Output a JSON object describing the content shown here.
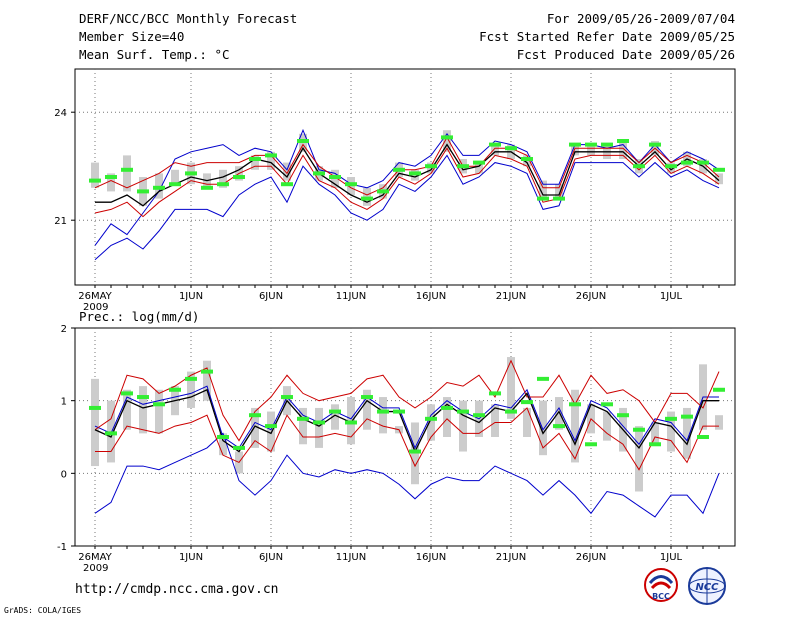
{
  "header": {
    "title": "DERF/NCC/BCC Monthly Forecast",
    "member_size": "Member Size=40",
    "variable": "Mean Surf. Temp.: °C",
    "period": "For 2009/05/26-2009/07/04",
    "started": "Fcst Started Refer Date 2009/05/25",
    "produced": "Fcst Produced Date 2009/05/26"
  },
  "footer": {
    "url": "http://cmdp.ncc.cma.gov.cn",
    "grads": "GrADS: COLA/IGES",
    "logo_bcc": "BCC",
    "logo_ncc": "NCC"
  },
  "colors": {
    "max_min": "#0000cc",
    "spread": "#cc0000",
    "mean": "#000000",
    "obs": "#33ee33",
    "box": "#cccccc"
  },
  "chart_data": [
    {
      "type": "line",
      "title": "Mean Surf. Temp.: °C",
      "ylim": [
        19.2,
        25.2
      ],
      "yticks": [
        21,
        24
      ],
      "ytick_labels": [
        "21",
        "24"
      ],
      "x_labels": [
        {
          "day": 0,
          "label": "26MAY"
        },
        {
          "day": 6,
          "label": "1JUN"
        },
        {
          "day": 11,
          "label": "6JUN"
        },
        {
          "day": 16,
          "label": "11JUN"
        },
        {
          "day": 21,
          "label": "16JUN"
        },
        {
          "day": 26,
          "label": "21JUN"
        },
        {
          "day": 31,
          "label": "26JUN"
        },
        {
          "day": 36,
          "label": "1JUL"
        }
      ],
      "year_label": "2009",
      "series": [
        {
          "name": "max",
          "values": [
            20.3,
            20.9,
            20.6,
            21.2,
            21.8,
            22.7,
            22.9,
            23.0,
            23.1,
            22.8,
            23.0,
            22.9,
            22.4,
            23.5,
            22.4,
            22.3,
            22.0,
            21.9,
            22.1,
            22.6,
            22.5,
            22.8,
            23.4,
            22.8,
            22.8,
            23.2,
            23.1,
            22.9,
            22.0,
            22.0,
            23.1,
            23.1,
            23.0,
            23.1,
            22.6,
            23.1,
            22.6,
            22.9,
            22.7,
            22.4
          ]
        },
        {
          "name": "upper",
          "values": [
            21.9,
            22.1,
            21.9,
            22.1,
            22.3,
            22.6,
            22.5,
            22.6,
            22.6,
            22.6,
            22.8,
            22.8,
            22.3,
            23.1,
            22.5,
            22.2,
            21.9,
            21.7,
            21.9,
            22.4,
            22.4,
            22.5,
            23.3,
            22.5,
            22.5,
            23.0,
            23.0,
            22.8,
            21.9,
            21.9,
            23.0,
            23.0,
            23.0,
            23.0,
            22.6,
            23.0,
            22.6,
            22.8,
            22.6,
            22.2
          ]
        },
        {
          "name": "mean",
          "values": [
            21.5,
            21.5,
            21.7,
            21.4,
            21.8,
            22.0,
            22.2,
            22.1,
            22.2,
            22.4,
            22.7,
            22.6,
            22.2,
            23.0,
            22.3,
            22.0,
            21.7,
            21.5,
            21.7,
            22.3,
            22.2,
            22.4,
            23.1,
            22.4,
            22.5,
            22.9,
            22.9,
            22.6,
            21.7,
            21.7,
            22.9,
            22.9,
            22.9,
            22.9,
            22.5,
            22.9,
            22.4,
            22.7,
            22.5,
            22.1
          ]
        },
        {
          "name": "lower",
          "values": [
            21.2,
            21.3,
            21.5,
            21.1,
            21.5,
            21.8,
            22.1,
            22.0,
            22.0,
            22.3,
            22.5,
            22.5,
            22.0,
            22.8,
            22.1,
            21.9,
            21.5,
            21.3,
            21.6,
            22.2,
            22.0,
            22.3,
            23.0,
            22.2,
            22.3,
            22.8,
            22.7,
            22.5,
            21.5,
            21.6,
            22.7,
            22.8,
            22.8,
            22.8,
            22.4,
            22.8,
            22.3,
            22.5,
            22.3,
            22.0
          ]
        },
        {
          "name": "min",
          "values": [
            19.9,
            20.3,
            20.5,
            20.2,
            20.7,
            21.3,
            21.3,
            21.3,
            21.1,
            21.7,
            22.0,
            22.2,
            21.5,
            22.5,
            22.0,
            21.7,
            21.2,
            21.0,
            21.3,
            22.0,
            21.8,
            22.2,
            22.8,
            22.0,
            22.2,
            22.6,
            22.5,
            22.3,
            21.3,
            21.4,
            22.6,
            22.6,
            22.6,
            22.6,
            22.2,
            22.6,
            22.2,
            22.4,
            22.1,
            21.9
          ]
        },
        {
          "name": "box_high",
          "values": [
            22.6,
            22.3,
            22.8,
            22.2,
            22.3,
            22.4,
            22.6,
            22.3,
            22.4,
            22.5,
            22.8,
            22.9,
            22.6,
            23.4,
            22.5,
            22.4,
            22.2,
            21.9,
            22.0,
            22.6,
            22.4,
            22.6,
            23.5,
            22.7,
            22.6,
            23.1,
            23.1,
            22.8,
            22.1,
            22.0,
            23.1,
            23.1,
            23.1,
            23.2,
            22.7,
            23.2,
            22.6,
            22.9,
            22.7,
            22.3
          ]
        },
        {
          "name": "box_low",
          "values": [
            21.9,
            21.8,
            21.8,
            21.4,
            21.6,
            22.0,
            22.0,
            21.9,
            21.9,
            22.1,
            22.4,
            22.4,
            22.1,
            22.9,
            22.1,
            21.9,
            21.7,
            21.4,
            21.6,
            22.2,
            22.1,
            22.3,
            22.9,
            22.3,
            22.3,
            22.8,
            22.7,
            22.5,
            21.6,
            21.6,
            22.8,
            22.8,
            22.7,
            22.7,
            22.3,
            22.8,
            22.3,
            22.5,
            22.3,
            22.0
          ]
        },
        {
          "name": "obs",
          "values": [
            22.1,
            22.2,
            22.4,
            21.8,
            21.9,
            22.0,
            22.3,
            21.9,
            22.0,
            22.2,
            22.7,
            22.8,
            22.0,
            23.2,
            22.3,
            22.2,
            22.0,
            21.6,
            21.8,
            22.4,
            22.3,
            22.5,
            23.3,
            22.5,
            22.6,
            23.1,
            23.0,
            22.7,
            21.6,
            21.6,
            23.1,
            23.1,
            23.1,
            23.2,
            22.5,
            23.1,
            22.5,
            22.6,
            22.6,
            22.4
          ]
        }
      ]
    },
    {
      "type": "line",
      "title": "Prec.: log(mm/d)",
      "ylim": [
        -1,
        2
      ],
      "yticks": [
        -1,
        0,
        1,
        2
      ],
      "ytick_labels": [
        "-1",
        "0",
        "1",
        "2"
      ],
      "x_labels": [
        {
          "day": 0,
          "label": "26MAY"
        },
        {
          "day": 6,
          "label": "1JUN"
        },
        {
          "day": 11,
          "label": "6JUN"
        },
        {
          "day": 16,
          "label": "11JUN"
        },
        {
          "day": 21,
          "label": "16JUN"
        },
        {
          "day": 26,
          "label": "21JUN"
        },
        {
          "day": 31,
          "label": "26JUN"
        },
        {
          "day": 36,
          "label": "1JUL"
        }
      ],
      "year_label": "2009",
      "series": [
        {
          "name": "max",
          "values": [
            -0.55,
            -0.4,
            0.1,
            0.1,
            0.05,
            0.15,
            0.25,
            0.35,
            0.55,
            -0.1,
            -0.3,
            -0.1,
            0.25,
            0.0,
            -0.05,
            0.05,
            0.0,
            0.05,
            0.0,
            -0.15,
            -0.35,
            -0.15,
            -0.05,
            -0.1,
            -0.1,
            0.1,
            0.0,
            -0.1,
            -0.3,
            -0.1,
            -0.3,
            -0.55,
            -0.25,
            -0.3,
            -0.45,
            -0.6,
            -0.3,
            -0.3,
            -0.55,
            0.0
          ]
        },
        {
          "name": "upper",
          "values": [
            0.6,
            0.75,
            1.35,
            1.3,
            1.1,
            1.2,
            1.35,
            1.45,
            0.8,
            0.45,
            0.85,
            1.05,
            1.35,
            1.1,
            1.0,
            1.05,
            1.1,
            1.3,
            1.35,
            1.05,
            0.9,
            1.05,
            1.25,
            1.2,
            1.35,
            1.05,
            1.55,
            1.05,
            1.05,
            1.35,
            0.95,
            1.35,
            1.1,
            1.15,
            1.0,
            0.7,
            1.1,
            1.1,
            0.9,
            1.4
          ]
        },
        {
          "name": "mean",
          "values": [
            0.6,
            0.5,
            1.0,
            0.9,
            0.95,
            1.0,
            1.05,
            1.15,
            0.45,
            0.3,
            0.65,
            0.55,
            1.0,
            0.75,
            0.65,
            0.8,
            0.7,
            1.0,
            0.85,
            0.85,
            0.3,
            0.75,
            0.95,
            0.8,
            0.7,
            0.9,
            0.85,
            1.1,
            0.55,
            0.85,
            0.4,
            0.95,
            0.85,
            0.6,
            0.35,
            0.7,
            0.65,
            0.4,
            1.0,
            1.0
          ]
        },
        {
          "name": "lower",
          "values": [
            0.3,
            0.3,
            0.65,
            0.6,
            0.55,
            0.65,
            0.7,
            0.8,
            0.25,
            0.15,
            0.45,
            0.3,
            0.8,
            0.5,
            0.5,
            0.55,
            0.5,
            0.75,
            0.65,
            0.6,
            0.1,
            0.5,
            0.75,
            0.55,
            0.55,
            0.7,
            0.7,
            0.9,
            0.35,
            0.55,
            0.2,
            0.75,
            0.55,
            0.4,
            0.05,
            0.5,
            0.45,
            0.15,
            0.65,
            0.65
          ]
        },
        {
          "name": "min",
          "values": [
            0.65,
            0.55,
            1.05,
            0.95,
            1.0,
            1.05,
            1.1,
            1.2,
            0.5,
            0.35,
            0.7,
            0.6,
            1.05,
            0.8,
            0.7,
            0.85,
            0.75,
            1.05,
            0.9,
            0.9,
            0.35,
            0.8,
            1.0,
            0.85,
            0.75,
            0.95,
            0.9,
            1.15,
            0.6,
            0.9,
            0.45,
            1.0,
            0.9,
            0.65,
            0.4,
            0.75,
            0.7,
            0.45,
            1.05,
            1.05
          ]
        },
        {
          "name": "box_high",
          "values": [
            1.3,
            1.0,
            1.15,
            1.2,
            1.15,
            1.2,
            1.4,
            1.55,
            0.55,
            0.3,
            0.9,
            0.85,
            1.2,
            0.9,
            0.9,
            0.95,
            1.05,
            1.15,
            1.05,
            0.65,
            0.7,
            0.95,
            1.05,
            1.0,
            1.0,
            0.95,
            1.6,
            0.9,
            1.0,
            1.05,
            1.15,
            0.95,
            0.85,
            0.9,
            0.65,
            0.7,
            0.85,
            0.9,
            1.5,
            0.6
          ]
        },
        {
          "name": "box_low",
          "values": [
            0.1,
            0.15,
            0.6,
            0.55,
            0.55,
            0.8,
            0.9,
            1.0,
            0.25,
            0.0,
            0.35,
            0.3,
            0.8,
            0.4,
            0.35,
            0.6,
            0.4,
            0.6,
            0.55,
            0.55,
            -0.15,
            0.45,
            0.5,
            0.3,
            0.5,
            0.5,
            0.75,
            0.5,
            0.25,
            0.6,
            0.15,
            0.55,
            0.45,
            0.3,
            -0.25,
            0.4,
            0.3,
            0.2,
            0.6,
            0.8
          ]
        },
        {
          "name": "obs",
          "values": [
            0.9,
            0.55,
            1.1,
            1.05,
            0.95,
            1.15,
            1.3,
            1.4,
            0.5,
            0.35,
            0.8,
            0.65,
            1.05,
            0.75,
            0.7,
            0.85,
            0.7,
            1.05,
            0.85,
            0.85,
            0.3,
            0.75,
            0.9,
            0.85,
            0.8,
            1.1,
            0.85,
            0.98,
            1.3,
            0.65,
            0.95,
            0.4,
            0.95,
            0.8,
            0.6,
            0.4,
            0.75,
            0.78,
            0.5,
            1.15
          ]
        }
      ]
    }
  ]
}
